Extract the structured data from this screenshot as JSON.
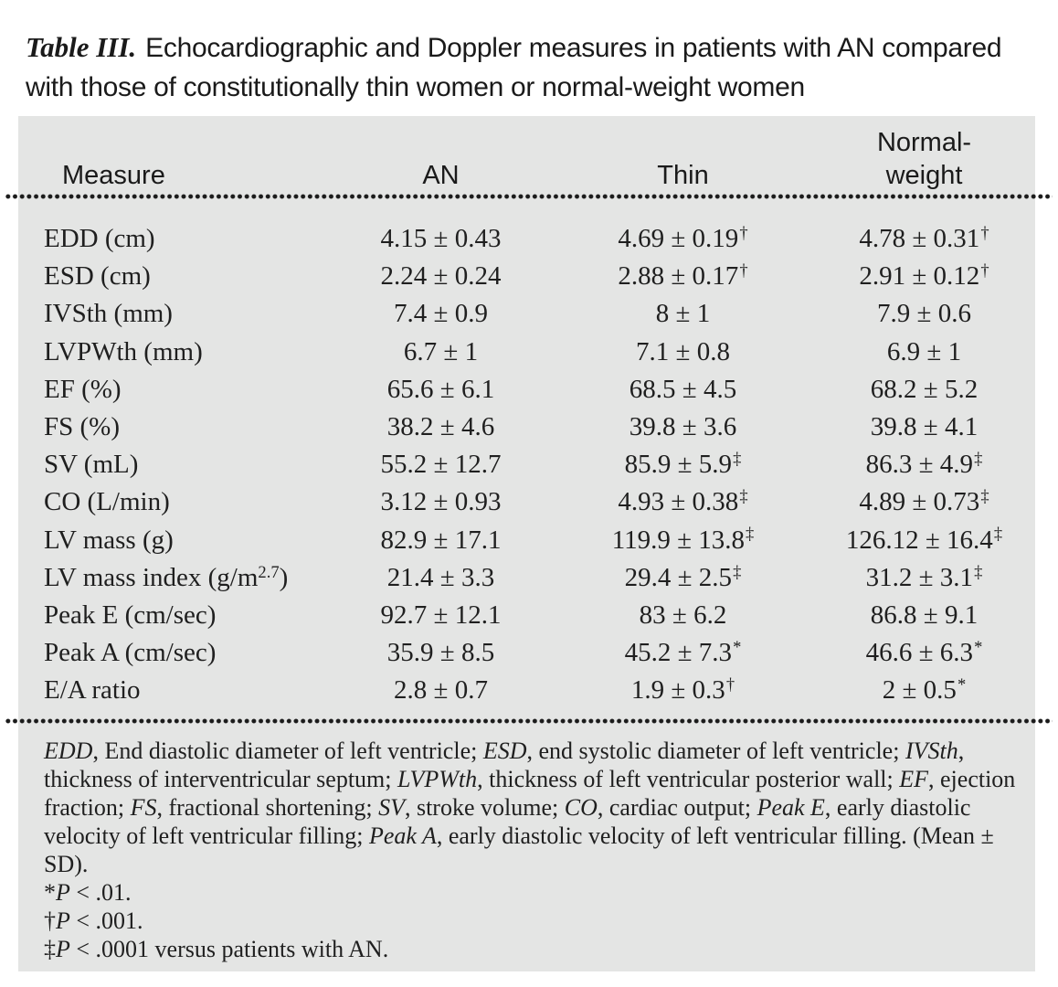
{
  "colors": {
    "panel_bg": "#e4e5e4",
    "text": "#1f1f1f",
    "dot_rule": "#1b1b1b",
    "page_bg": "#ffffff"
  },
  "title": {
    "label": "Table III.",
    "line1": "Echocardiographic and Doppler measures in patients with AN compared",
    "line2": "with those of constitutionally thin women or normal-weight women"
  },
  "table": {
    "header": {
      "measure": "Measure",
      "an": "AN",
      "thin": "Thin",
      "normal_weight": "Normal-weight"
    },
    "rows": [
      {
        "label": "EDD (cm)",
        "label_sup": "",
        "label_after": "",
        "values": [
          {
            "v": "4.15 ± 0.43",
            "sup": ""
          },
          {
            "v": "4.69 ± 0.19",
            "sup": "†"
          },
          {
            "v": "4.78 ± 0.31",
            "sup": "†"
          }
        ]
      },
      {
        "label": "ESD (cm)",
        "label_sup": "",
        "label_after": "",
        "values": [
          {
            "v": "2.24 ± 0.24",
            "sup": ""
          },
          {
            "v": "2.88 ± 0.17",
            "sup": "†"
          },
          {
            "v": "2.91 ± 0.12",
            "sup": "†"
          }
        ]
      },
      {
        "label": "IVSth (mm)",
        "label_sup": "",
        "label_after": "",
        "values": [
          {
            "v": "7.4 ± 0.9",
            "sup": ""
          },
          {
            "v": "8 ± 1",
            "sup": ""
          },
          {
            "v": "7.9 ± 0.6",
            "sup": ""
          }
        ]
      },
      {
        "label": "LVPWth (mm)",
        "label_sup": "",
        "label_after": "",
        "values": [
          {
            "v": "6.7 ± 1",
            "sup": ""
          },
          {
            "v": "7.1 ± 0.8",
            "sup": ""
          },
          {
            "v": "6.9 ± 1",
            "sup": ""
          }
        ]
      },
      {
        "label": "EF (%)",
        "label_sup": "",
        "label_after": "",
        "values": [
          {
            "v": "65.6 ± 6.1",
            "sup": ""
          },
          {
            "v": "68.5 ± 4.5",
            "sup": ""
          },
          {
            "v": "68.2 ± 5.2",
            "sup": ""
          }
        ]
      },
      {
        "label": "FS (%)",
        "label_sup": "",
        "label_after": "",
        "values": [
          {
            "v": "38.2 ± 4.6",
            "sup": ""
          },
          {
            "v": "39.8 ± 3.6",
            "sup": ""
          },
          {
            "v": "39.8 ± 4.1",
            "sup": ""
          }
        ]
      },
      {
        "label": "SV (mL)",
        "label_sup": "",
        "label_after": "",
        "values": [
          {
            "v": "55.2 ± 12.7",
            "sup": ""
          },
          {
            "v": "85.9 ± 5.9",
            "sup": "‡"
          },
          {
            "v": "86.3 ± 4.9",
            "sup": "‡"
          }
        ]
      },
      {
        "label": "CO (L/min)",
        "label_sup": "",
        "label_after": "",
        "values": [
          {
            "v": "3.12 ± 0.93",
            "sup": ""
          },
          {
            "v": "4.93 ± 0.38",
            "sup": "‡"
          },
          {
            "v": "4.89 ± 0.73",
            "sup": "‡"
          }
        ]
      },
      {
        "label": "LV mass (g)",
        "label_sup": "",
        "label_after": "",
        "values": [
          {
            "v": "82.9 ± 17.1",
            "sup": ""
          },
          {
            "v": "119.9 ± 13.8",
            "sup": "‡"
          },
          {
            "v": "126.12 ± 16.4",
            "sup": "‡"
          }
        ]
      },
      {
        "label": "LV mass index (g/m",
        "label_sup": "2.7",
        "label_after": ")",
        "values": [
          {
            "v": "21.4 ± 3.3",
            "sup": ""
          },
          {
            "v": "29.4 ± 2.5",
            "sup": "‡"
          },
          {
            "v": "31.2 ± 3.1",
            "sup": "‡"
          }
        ]
      },
      {
        "label": "Peak E (cm/sec)",
        "label_sup": "",
        "label_after": "",
        "values": [
          {
            "v": "92.7 ± 12.1",
            "sup": ""
          },
          {
            "v": "83 ± 6.2",
            "sup": ""
          },
          {
            "v": "86.8 ± 9.1",
            "sup": ""
          }
        ]
      },
      {
        "label": "Peak A (cm/sec)",
        "label_sup": "",
        "label_after": "",
        "values": [
          {
            "v": "35.9 ± 8.5",
            "sup": ""
          },
          {
            "v": "45.2 ± 7.3",
            "sup": "*"
          },
          {
            "v": "46.6 ± 6.3",
            "sup": "*"
          }
        ]
      },
      {
        "label": "E/A ratio",
        "label_sup": "",
        "label_after": "",
        "values": [
          {
            "v": "2.8 ± 0.7",
            "sup": ""
          },
          {
            "v": "1.9 ± 0.3",
            "sup": "†"
          },
          {
            "v": "2 ± 0.5",
            "sup": "*"
          }
        ]
      }
    ]
  },
  "footnotes": {
    "abbreviations": [
      {
        "t": "EDD",
        "i": 1
      },
      {
        "t": ", End diastolic diameter of left ventricle; "
      },
      {
        "t": "ESD",
        "i": 1
      },
      {
        "t": ", end systolic diameter of left ventricle; "
      },
      {
        "t": "IVSth",
        "i": 1
      },
      {
        "t": ", thickness of interventricular septum; "
      },
      {
        "t": "LVPWth",
        "i": 1
      },
      {
        "t": ", thickness of left ventricular posterior wall; "
      },
      {
        "t": "EF",
        "i": 1
      },
      {
        "t": ", ejection fraction; "
      },
      {
        "t": "FS",
        "i": 1
      },
      {
        "t": ", fractional shortening; "
      },
      {
        "t": "SV",
        "i": 1
      },
      {
        "t": ", stroke volume; "
      },
      {
        "t": "CO",
        "i": 1
      },
      {
        "t": ", cardiac output; "
      },
      {
        "t": "Peak E",
        "i": 1
      },
      {
        "t": ", early diastolic velocity of left ventricular filling; "
      },
      {
        "t": "Peak A",
        "i": 1
      },
      {
        "t": ", early diastolic velocity of left ventricular filling. (Mean ± SD)."
      }
    ],
    "p_lines": [
      {
        "marker": "*",
        "p": "P",
        "rest": " < .01."
      },
      {
        "marker": "†",
        "p": "P",
        "rest": " < .001."
      },
      {
        "marker": "‡",
        "p": "P",
        "rest": " < .0001 versus patients with AN."
      }
    ]
  }
}
